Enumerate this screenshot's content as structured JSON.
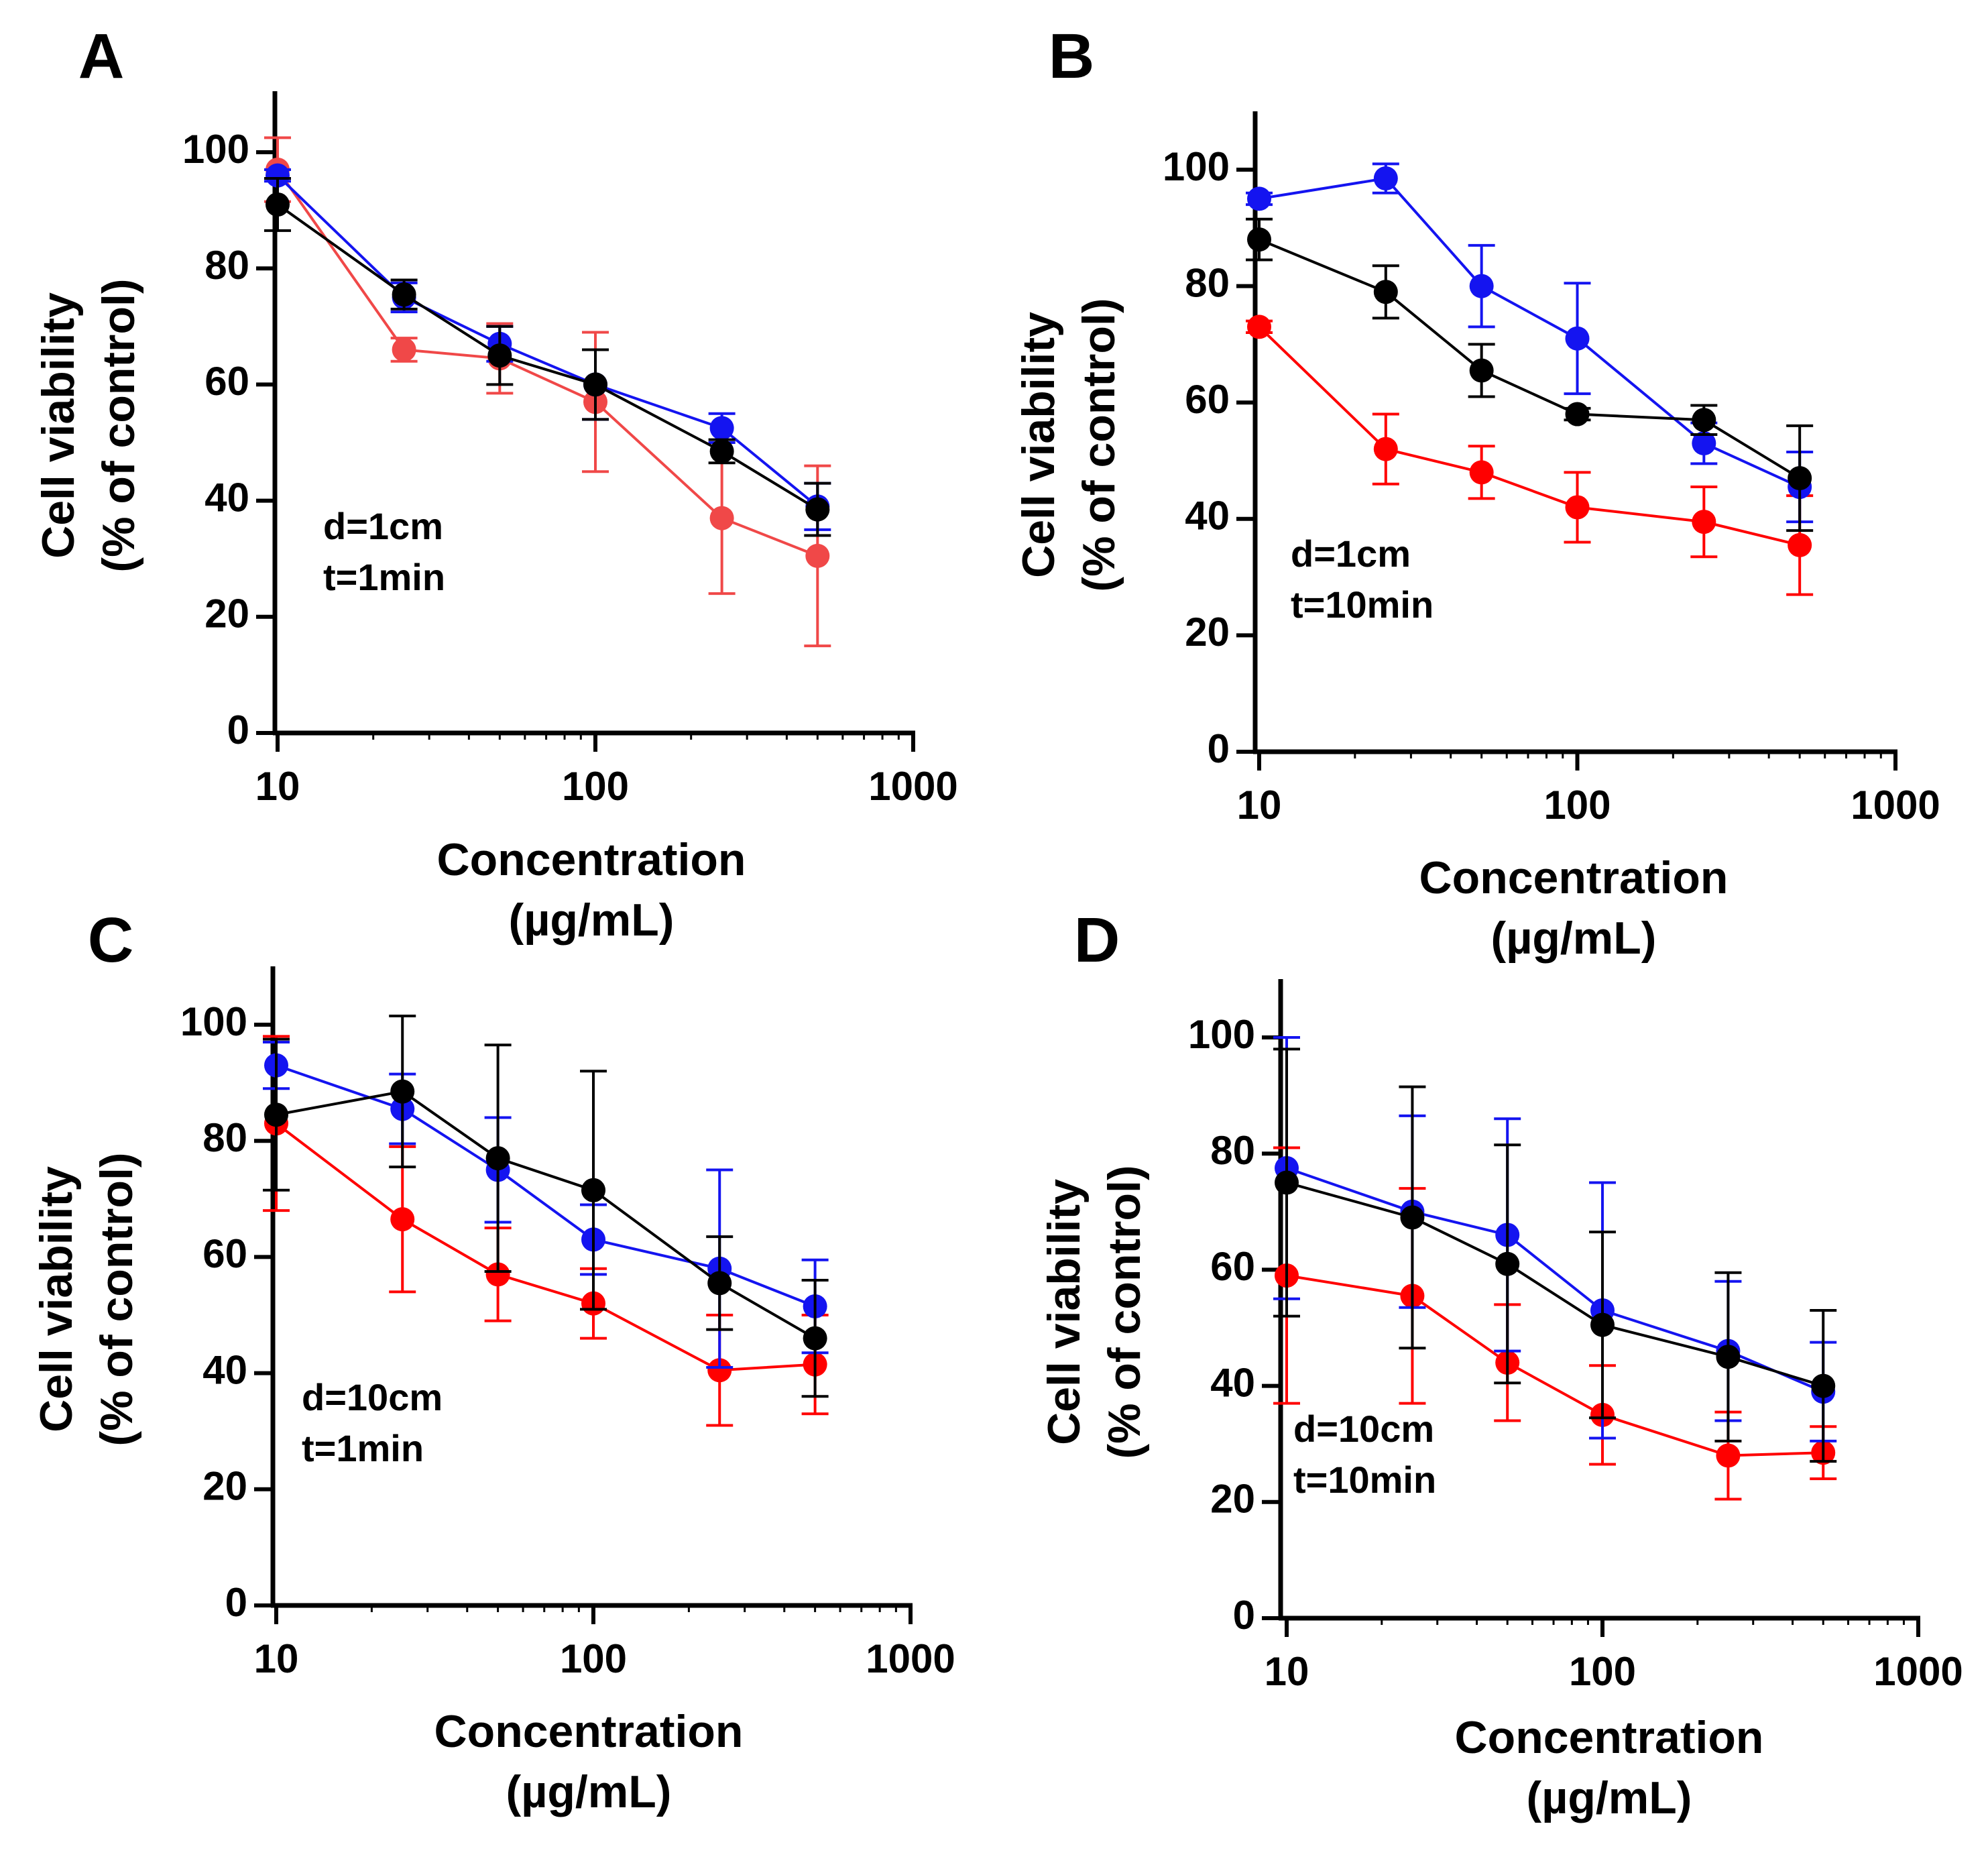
{
  "chart_data": [
    {
      "panel": "A",
      "type": "line",
      "xscale": "log",
      "xlim": [
        10,
        1000
      ],
      "ylim": [
        0,
        110
      ],
      "xlabel": [
        "Concentration",
        "(µg/mL)"
      ],
      "ylabel": [
        "Cell viability",
        "(% of control)"
      ],
      "xticks": [
        "10",
        "100",
        "1000"
      ],
      "yticks": [
        "0",
        "20",
        "40",
        "60",
        "80",
        "100"
      ],
      "annotation": [
        "d=1cm",
        "t=1min"
      ],
      "x": [
        10,
        25,
        50,
        100,
        250,
        500
      ],
      "series": [
        {
          "color": "#f04848",
          "values": [
            97,
            66,
            64.5,
            57,
            37,
            30.5
          ],
          "errors": [
            5.5,
            2,
            6,
            12,
            13,
            15.5
          ]
        },
        {
          "color": "#1414f0",
          "values": [
            96,
            75,
            67,
            60,
            52.5,
            39
          ],
          "errors": [
            1,
            2.5,
            3,
            6,
            2.5,
            4
          ]
        },
        {
          "color": "#000000",
          "values": [
            91,
            75.5,
            65,
            60,
            48.5,
            38.5
          ],
          "errors": [
            4.5,
            2.5,
            5,
            6,
            2,
            4.5
          ]
        }
      ]
    },
    {
      "panel": "B",
      "type": "line",
      "xscale": "log",
      "xlim": [
        10,
        1000
      ],
      "ylim": [
        0,
        110
      ],
      "xlabel": [
        "Concentration",
        "(µg/mL)"
      ],
      "ylabel": [
        "Cell viability",
        "(% of control)"
      ],
      "xticks": [
        "10",
        "100",
        "1000"
      ],
      "yticks": [
        "0",
        "20",
        "40",
        "60",
        "80",
        "100"
      ],
      "annotation": [
        "d=1cm",
        "t=10min"
      ],
      "x": [
        10,
        25,
        50,
        100,
        250,
        500
      ],
      "series": [
        {
          "color": "#ff0000",
          "values": [
            73,
            52,
            48,
            42,
            39.5,
            35.5
          ],
          "errors": [
            1,
            6,
            4.5,
            6,
            6,
            8.5
          ]
        },
        {
          "color": "#1414f0",
          "values": [
            95,
            98.5,
            80,
            71,
            53,
            45.5
          ],
          "errors": [
            1,
            2.5,
            7,
            9.5,
            3.5,
            6
          ]
        },
        {
          "color": "#000000",
          "values": [
            88,
            79,
            65.5,
            58,
            57,
            47
          ],
          "errors": [
            3.5,
            4.5,
            4.5,
            1,
            2.5,
            9
          ]
        }
      ]
    },
    {
      "panel": "C",
      "type": "line",
      "xscale": "log",
      "xlim": [
        10,
        1000
      ],
      "ylim": [
        0,
        110
      ],
      "xlabel": [
        "Concentration",
        "(µg/mL)"
      ],
      "ylabel": [
        "Cell viability",
        "(% of control)"
      ],
      "xticks": [
        "10",
        "100",
        "1000"
      ],
      "yticks": [
        "0",
        "20",
        "40",
        "60",
        "80",
        "100"
      ],
      "annotation": [
        "d=10cm",
        "t=1min"
      ],
      "x": [
        10,
        25,
        50,
        100,
        250,
        500
      ],
      "series": [
        {
          "color": "#ff0000",
          "values": [
            83,
            66.5,
            57,
            52,
            40.5,
            41.5
          ],
          "errors": [
            15,
            12.5,
            8,
            6,
            9.5,
            8.5
          ]
        },
        {
          "color": "#1414f0",
          "values": [
            93,
            85.5,
            75,
            63,
            58,
            51.5
          ],
          "errors": [
            4,
            6,
            9,
            6,
            17,
            8
          ]
        },
        {
          "color": "#000000",
          "values": [
            84.5,
            88.5,
            77,
            71.5,
            55.5,
            46
          ],
          "errors": [
            13,
            13,
            19.5,
            20.5,
            8,
            10
          ]
        }
      ]
    },
    {
      "panel": "D",
      "type": "line",
      "xscale": "log",
      "xlim": [
        10,
        1000
      ],
      "ylim": [
        0,
        110
      ],
      "xlabel": [
        "Concentration",
        "(µg/mL)"
      ],
      "ylabel": [
        "Cell viability",
        "(% of control)"
      ],
      "xticks": [
        "10",
        "100",
        "1000"
      ],
      "yticks": [
        "0",
        "20",
        "40",
        "60",
        "80",
        "100"
      ],
      "annotation": [
        "d=10cm",
        "t=10min"
      ],
      "x": [
        10,
        25,
        50,
        100,
        250,
        500
      ],
      "series": [
        {
          "color": "#ff0000",
          "values": [
            59,
            55.5,
            44,
            35,
            28,
            28.5
          ],
          "errors": [
            22,
            18.5,
            10,
            8.5,
            7.5,
            4.5
          ]
        },
        {
          "color": "#1414f0",
          "values": [
            77.5,
            70,
            66,
            53,
            46,
            39
          ],
          "errors": [
            22.5,
            16.5,
            20,
            22,
            12,
            8.5
          ]
        },
        {
          "color": "#000000",
          "values": [
            75,
            69,
            61,
            50.5,
            45,
            40
          ],
          "errors": [
            23,
            22.5,
            20.5,
            16,
            14.5,
            13
          ]
        }
      ]
    }
  ]
}
